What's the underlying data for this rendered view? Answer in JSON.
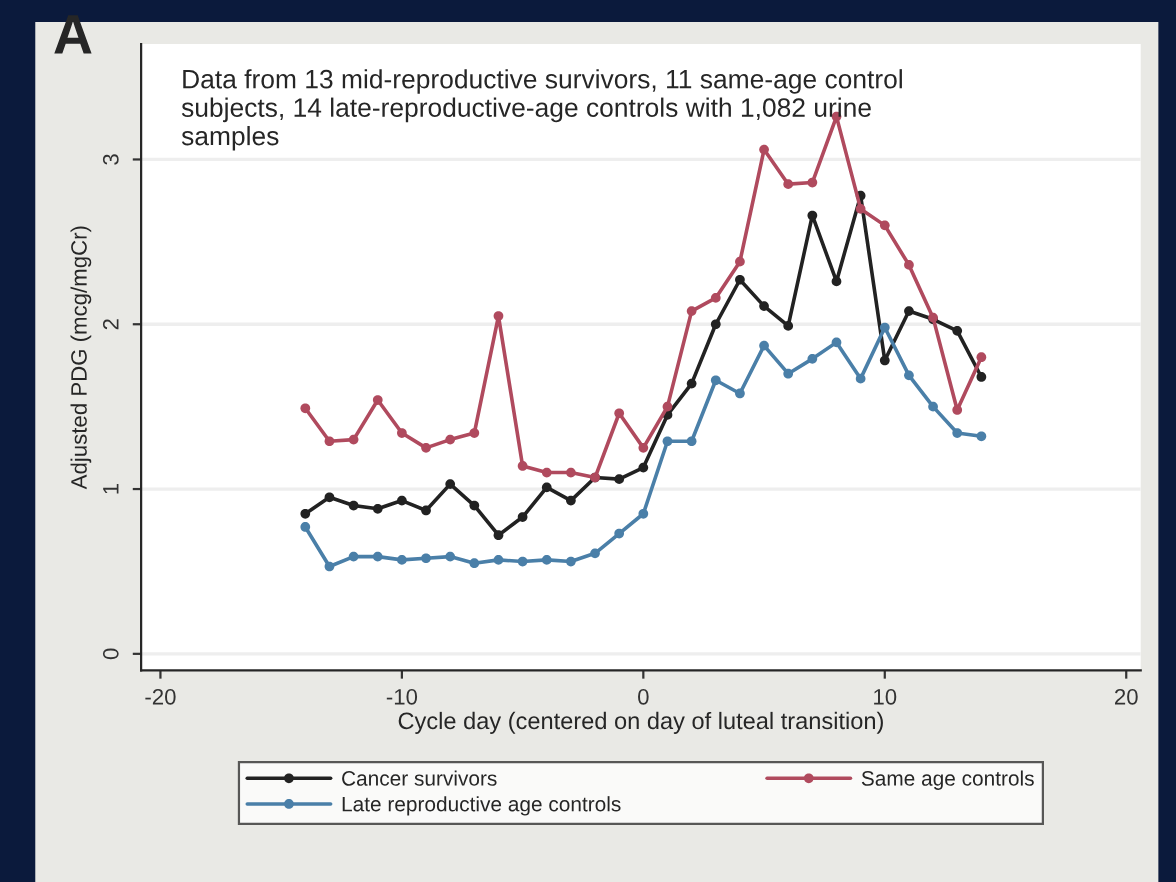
{
  "chart_data": {
    "type": "line",
    "title": "A",
    "annotations": [
      "Data from 13 mid-reproductive survivors, 11 same-age control subjects, 14 late-reproductive-age controls with 1,082 urine samples"
    ],
    "xlabel": "Cycle day (centered on day of luteal transition)",
    "ylabel": "Adjusted PDG (mcg/mgCr)",
    "x": [
      -14,
      -13,
      -12,
      -11,
      -10,
      -9,
      -8,
      -7,
      -6,
      -5,
      -4,
      -3,
      -2,
      -1,
      0,
      1,
      2,
      3,
      4,
      5,
      6,
      7,
      8,
      9,
      10,
      11,
      12,
      13,
      14
    ],
    "series": [
      {
        "name": "Cancer survivors",
        "color": "#222222",
        "values": [
          0.85,
          0.95,
          0.9,
          0.88,
          0.93,
          0.87,
          1.03,
          0.9,
          0.72,
          0.83,
          1.01,
          0.93,
          1.07,
          1.06,
          1.13,
          1.45,
          1.64,
          2.0,
          2.27,
          2.11,
          1.99,
          2.66,
          2.26,
          2.78,
          1.78,
          2.08,
          2.03,
          1.96,
          1.68
        ]
      },
      {
        "name": "Same age controls",
        "color": "#b04a5e",
        "values": [
          1.49,
          1.29,
          1.3,
          1.54,
          1.34,
          1.25,
          1.3,
          1.34,
          2.05,
          1.14,
          1.1,
          1.1,
          1.07,
          1.46,
          1.25,
          1.5,
          2.08,
          2.16,
          2.38,
          3.06,
          2.85,
          2.86,
          3.26,
          2.7,
          2.6,
          2.36,
          2.04,
          1.48,
          1.8
        ]
      },
      {
        "name": "Late reproductive age controls",
        "color": "#4a7fa8",
        "values": [
          0.77,
          0.53,
          0.59,
          0.59,
          0.57,
          0.58,
          0.59,
          0.55,
          0.57,
          0.56,
          0.57,
          0.56,
          0.61,
          0.73,
          0.85,
          1.29,
          1.29,
          1.66,
          1.58,
          1.87,
          1.7,
          1.79,
          1.89,
          1.67,
          1.98,
          1.69,
          1.5,
          1.34,
          1.32
        ]
      }
    ],
    "xlim": [
      -20.8,
      20.6
    ],
    "ylim": [
      -0.1,
      3.7
    ],
    "xticks": [
      -20,
      -10,
      0,
      10,
      20
    ],
    "yticks": [
      0,
      1,
      2,
      3
    ],
    "grid": "y",
    "legend": "bottom",
    "marker": "circle",
    "line_style": "solid"
  }
}
